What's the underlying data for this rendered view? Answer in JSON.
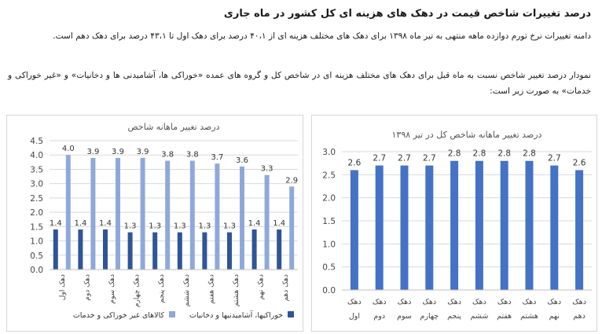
{
  "document": {
    "heading": "درصد تغییرات شاخص قیمت در دهک های هزینه ای کل کشور در ماه جاری",
    "paragraph1": "دامنه تغییرات نرخ تورم دوازده ماهه منتهی به تیر ماه ۱۳۹۸ برای دهک های مختلف هزینه ای از ۴۰،۱ درصد برای دهک اول تا ۴۳،۱ درصد برای دهک دهم است.",
    "paragraph2": "نمودار درصد تغییر شاخص نسبت به ماه قبل برای دهک های مختلف هزینه ای در شاخص کل و گروه های عمده «خوراکی ها، آشامیدنی ها و دخانیات» و «غیر خوراکی و خدمات» به صورت زیر است:"
  },
  "colors": {
    "dark_series": "#2e5597",
    "light_series": "#8fa8db",
    "right_series": "#4472c4"
  },
  "chart_data": [
    {
      "type": "bar",
      "title": "درصد تغییر ماهانه شاخص",
      "categories": [
        "دهک اول",
        "دهک دوم",
        "دهک سوم",
        "دهک چهارم",
        "دهک پنجم",
        "دهک ششم",
        "دهک هفتم",
        "دهک هشتم",
        "دهک نهم",
        "دهک دهم"
      ],
      "series": [
        {
          "name": "خوراکیها، آشامیدنیها و دخانیات",
          "values": [
            1.4,
            1.4,
            1.4,
            1.3,
            1.3,
            1.3,
            1.3,
            1.3,
            1.4,
            1.4
          ],
          "color": "#2e5597"
        },
        {
          "name": "کالاهای غیر خوراکی و خدمات",
          "values": [
            4.0,
            3.9,
            3.9,
            3.9,
            3.8,
            3.8,
            3.7,
            3.6,
            3.3,
            2.9
          ],
          "color": "#8fa8db"
        }
      ],
      "ylim": [
        0,
        4.5
      ],
      "yticks": [
        "0.0",
        "0.5",
        "1.0",
        "1.5",
        "2.0",
        "2.5",
        "3.0",
        "3.5",
        "4.0",
        "4.5"
      ],
      "grid": true,
      "legend": "bottom"
    },
    {
      "type": "bar",
      "title": "درصد تغییر ماهانه شاخص کل در تیر ۱۳۹۸",
      "categories": [
        "دهک اول",
        "دهک دوم",
        "دهک سوم",
        "دهک چهارم",
        "دهک پنجم",
        "دهک ششم",
        "دهک هفتم",
        "دهک هشتم",
        "دهک نهم",
        "دهک دهم"
      ],
      "values": [
        2.6,
        2.7,
        2.7,
        2.7,
        2.8,
        2.8,
        2.8,
        2.8,
        2.7,
        2.6
      ],
      "color": "#4472c4",
      "ylim": [
        0,
        3.0
      ],
      "yticks": [
        "0.0",
        "0.5",
        "1.0",
        "1.5",
        "2.0",
        "2.5",
        "3.0"
      ],
      "grid": true,
      "legend": "none"
    }
  ]
}
